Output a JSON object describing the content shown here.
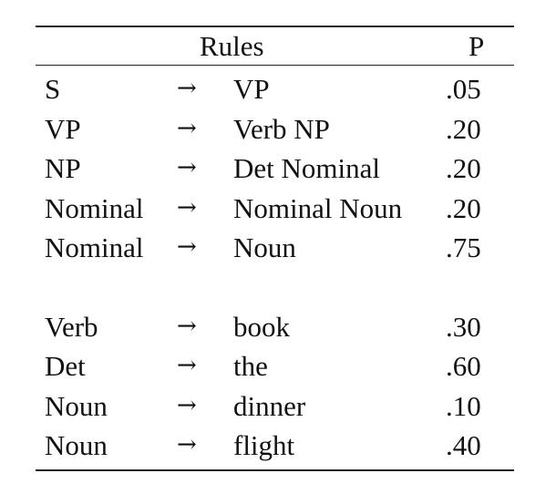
{
  "table": {
    "header": {
      "rules": "Rules",
      "p": "P"
    },
    "arrow": "→",
    "group1": [
      {
        "lhs": "S",
        "rhs": "VP",
        "p": ".05"
      },
      {
        "lhs": "VP",
        "rhs": "Verb NP",
        "p": ".20"
      },
      {
        "lhs": "NP",
        "rhs": "Det Nominal",
        "p": ".20"
      },
      {
        "lhs": "Nominal",
        "rhs": "Nominal Noun",
        "p": ".20"
      },
      {
        "lhs": "Nominal",
        "rhs": "Noun",
        "p": ".75"
      }
    ],
    "group2": [
      {
        "lhs": "Verb",
        "rhs": "book",
        "p": ".30"
      },
      {
        "lhs": "Det",
        "rhs": "the",
        "p": ".60"
      },
      {
        "lhs": "Noun",
        "rhs": "dinner",
        "p": ".10"
      },
      {
        "lhs": "Noun",
        "rhs": "flight",
        "p": ".40"
      }
    ]
  }
}
